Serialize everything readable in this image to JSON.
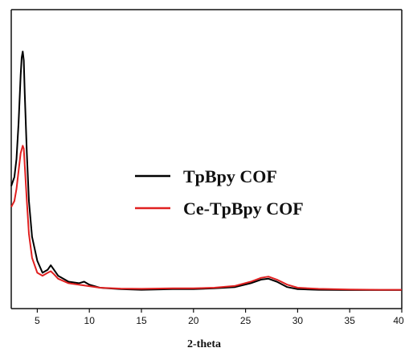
{
  "chart_data": {
    "type": "line",
    "xlabel": "2-theta",
    "ylabel": "",
    "xlim": [
      2.5,
      40
    ],
    "ylim": [
      0,
      1
    ],
    "x_ticks": [
      5,
      10,
      15,
      20,
      25,
      30,
      35,
      40
    ],
    "y_ticks": [],
    "grid": false,
    "legend": {
      "placement": "center-right"
    },
    "series": [
      {
        "name": "TpBpy COF",
        "color": "#000000",
        "points": [
          [
            2.5,
            0.41
          ],
          [
            2.8,
            0.44
          ],
          [
            3.0,
            0.5
          ],
          [
            3.2,
            0.62
          ],
          [
            3.4,
            0.78
          ],
          [
            3.5,
            0.84
          ],
          [
            3.6,
            0.86
          ],
          [
            3.7,
            0.83
          ],
          [
            3.8,
            0.72
          ],
          [
            4.0,
            0.52
          ],
          [
            4.2,
            0.36
          ],
          [
            4.5,
            0.24
          ],
          [
            5.0,
            0.16
          ],
          [
            5.5,
            0.12
          ],
          [
            6.0,
            0.13
          ],
          [
            6.3,
            0.145
          ],
          [
            6.6,
            0.13
          ],
          [
            7.0,
            0.11
          ],
          [
            8.0,
            0.09
          ],
          [
            9.0,
            0.085
          ],
          [
            9.5,
            0.09
          ],
          [
            10.0,
            0.08
          ],
          [
            11.0,
            0.07
          ],
          [
            13.0,
            0.065
          ],
          [
            15.0,
            0.063
          ],
          [
            18.0,
            0.065
          ],
          [
            20.0,
            0.065
          ],
          [
            22.0,
            0.068
          ],
          [
            24.0,
            0.072
          ],
          [
            25.5,
            0.085
          ],
          [
            26.5,
            0.097
          ],
          [
            27.2,
            0.1
          ],
          [
            28.0,
            0.09
          ],
          [
            29.0,
            0.072
          ],
          [
            30.0,
            0.065
          ],
          [
            32.0,
            0.063
          ],
          [
            35.0,
            0.062
          ],
          [
            38.0,
            0.062
          ],
          [
            40.0,
            0.062
          ]
        ]
      },
      {
        "name": "Ce-TpBpy COF",
        "color": "#e02020",
        "points": [
          [
            2.5,
            0.34
          ],
          [
            2.8,
            0.36
          ],
          [
            3.0,
            0.4
          ],
          [
            3.2,
            0.46
          ],
          [
            3.4,
            0.52
          ],
          [
            3.6,
            0.545
          ],
          [
            3.7,
            0.535
          ],
          [
            3.8,
            0.48
          ],
          [
            4.0,
            0.36
          ],
          [
            4.2,
            0.25
          ],
          [
            4.5,
            0.17
          ],
          [
            5.0,
            0.12
          ],
          [
            5.5,
            0.11
          ],
          [
            6.0,
            0.12
          ],
          [
            6.3,
            0.125
          ],
          [
            6.6,
            0.115
          ],
          [
            7.0,
            0.1
          ],
          [
            8.0,
            0.085
          ],
          [
            9.0,
            0.08
          ],
          [
            10.0,
            0.075
          ],
          [
            11.0,
            0.07
          ],
          [
            13.0,
            0.067
          ],
          [
            15.0,
            0.066
          ],
          [
            18.0,
            0.068
          ],
          [
            20.0,
            0.068
          ],
          [
            22.0,
            0.07
          ],
          [
            24.0,
            0.076
          ],
          [
            25.5,
            0.09
          ],
          [
            26.5,
            0.103
          ],
          [
            27.2,
            0.107
          ],
          [
            28.0,
            0.097
          ],
          [
            29.0,
            0.08
          ],
          [
            30.0,
            0.07
          ],
          [
            32.0,
            0.066
          ],
          [
            35.0,
            0.064
          ],
          [
            38.0,
            0.063
          ],
          [
            40.0,
            0.063
          ]
        ]
      }
    ]
  }
}
